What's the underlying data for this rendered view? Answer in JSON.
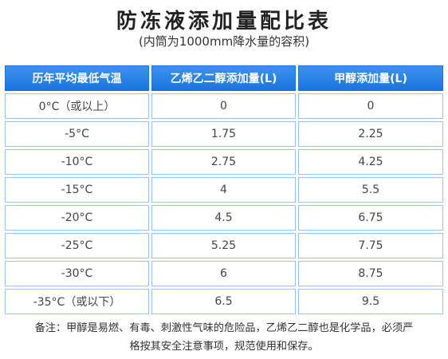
{
  "header": {
    "title": "防冻液添加量配比表",
    "subtitle": "(内筒为1000mm降水量的容积)"
  },
  "table": {
    "columns": [
      "历年平均最低气温",
      "乙烯乙二醇添加量(L)",
      "甲醇添加量(L)"
    ],
    "rows": [
      [
        "0°C（或以上）",
        "0",
        "0"
      ],
      [
        "-5°C",
        "1.75",
        "2.25"
      ],
      [
        "-10°C",
        "2.75",
        "4.25"
      ],
      [
        "-15°C",
        "4",
        "5.5"
      ],
      [
        "-20°C",
        "4.5",
        "6.75"
      ],
      [
        "-25°C",
        "5.25",
        "7.75"
      ],
      [
        "-30°C",
        "6",
        "8.75"
      ],
      [
        "-35°C（或以下）",
        "6.5",
        "9.5"
      ]
    ]
  },
  "footer": {
    "lines": [
      "备注：甲醇是易燃、有毒、刺激性气味的危险品，乙烯乙二醇也是化学品，必须严",
      "格按其安全注意事项，规范使用和保存。"
    ]
  }
}
